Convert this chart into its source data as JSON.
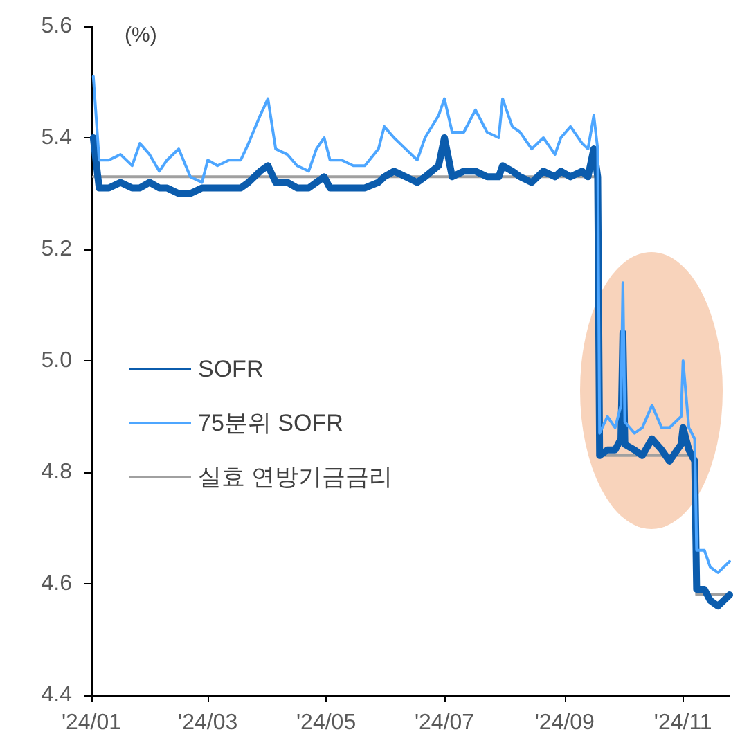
{
  "chart_data": {
    "type": "line",
    "ylabel": "(%)",
    "x": [
      "2024-01-02",
      "2024-01-05",
      "2024-01-10",
      "2024-01-16",
      "2024-01-22",
      "2024-01-26",
      "2024-01-31",
      "2024-02-05",
      "2024-02-09",
      "2024-02-15",
      "2024-02-21",
      "2024-02-27",
      "2024-03-01",
      "2024-03-06",
      "2024-03-12",
      "2024-03-18",
      "2024-03-22",
      "2024-03-28",
      "2024-04-01",
      "2024-04-05",
      "2024-04-11",
      "2024-04-16",
      "2024-04-22",
      "2024-04-26",
      "2024-04-30",
      "2024-05-03",
      "2024-05-09",
      "2024-05-15",
      "2024-05-21",
      "2024-05-28",
      "2024-05-31",
      "2024-06-05",
      "2024-06-11",
      "2024-06-17",
      "2024-06-21",
      "2024-06-28",
      "2024-07-01",
      "2024-07-05",
      "2024-07-11",
      "2024-07-17",
      "2024-07-23",
      "2024-07-29",
      "2024-07-31",
      "2024-08-05",
      "2024-08-09",
      "2024-08-15",
      "2024-08-21",
      "2024-08-27",
      "2024-08-30",
      "2024-09-04",
      "2024-09-10",
      "2024-09-13",
      "2024-09-16",
      "2024-09-18",
      "2024-09-19",
      "2024-09-23",
      "2024-09-27",
      "2024-09-30",
      "2024-10-01",
      "2024-10-02",
      "2024-10-07",
      "2024-10-11",
      "2024-10-16",
      "2024-10-21",
      "2024-10-25",
      "2024-10-31",
      "2024-11-01",
      "2024-11-04",
      "2024-11-07",
      "2024-11-08",
      "2024-11-12",
      "2024-11-15",
      "2024-11-19",
      "2024-11-22",
      "2024-11-25"
    ],
    "series": [
      {
        "name": "SOFR",
        "color": "#0b5cad",
        "values": [
          5.4,
          5.31,
          5.31,
          5.32,
          5.31,
          5.31,
          5.32,
          5.31,
          5.31,
          5.3,
          5.3,
          5.31,
          5.31,
          5.31,
          5.31,
          5.31,
          5.32,
          5.34,
          5.35,
          5.32,
          5.32,
          5.31,
          5.31,
          5.32,
          5.33,
          5.31,
          5.31,
          5.31,
          5.31,
          5.32,
          5.33,
          5.34,
          5.33,
          5.32,
          5.33,
          5.35,
          5.4,
          5.33,
          5.34,
          5.34,
          5.33,
          5.33,
          5.35,
          5.34,
          5.33,
          5.32,
          5.34,
          5.33,
          5.34,
          5.33,
          5.34,
          5.33,
          5.38,
          5.33,
          4.83,
          4.84,
          4.84,
          4.86,
          5.05,
          4.85,
          4.84,
          4.83,
          4.86,
          4.84,
          4.82,
          4.85,
          4.88,
          4.84,
          4.82,
          4.59,
          4.59,
          4.57,
          4.56,
          4.57,
          4.58
        ]
      },
      {
        "name": "75분위 SOFR",
        "color": "#4da6ff",
        "values": [
          5.51,
          5.36,
          5.36,
          5.37,
          5.35,
          5.39,
          5.37,
          5.34,
          5.36,
          5.38,
          5.33,
          5.32,
          5.36,
          5.35,
          5.36,
          5.36,
          5.39,
          5.44,
          5.47,
          5.38,
          5.37,
          5.35,
          5.34,
          5.38,
          5.4,
          5.36,
          5.36,
          5.35,
          5.35,
          5.38,
          5.42,
          5.4,
          5.38,
          5.36,
          5.4,
          5.44,
          5.47,
          5.41,
          5.41,
          5.45,
          5.41,
          5.4,
          5.47,
          5.42,
          5.41,
          5.38,
          5.4,
          5.37,
          5.4,
          5.42,
          5.39,
          5.38,
          5.44,
          5.38,
          4.87,
          4.9,
          4.88,
          4.92,
          5.14,
          4.89,
          4.87,
          4.88,
          4.92,
          4.88,
          4.88,
          4.9,
          5.0,
          4.88,
          4.86,
          4.66,
          4.66,
          4.63,
          4.62,
          4.63,
          4.64
        ]
      },
      {
        "name": "실효 연방기금금리",
        "color": "#a0a0a0",
        "x": [
          "2024-01-02",
          "2024-09-18",
          "2024-09-19",
          "2024-11-07",
          "2024-11-08",
          "2024-11-25"
        ],
        "values": [
          5.33,
          5.33,
          4.83,
          4.83,
          4.58,
          4.58
        ]
      }
    ],
    "xlim": [
      "2024-01-01",
      "2024-11-25"
    ],
    "xticks": [
      {
        "value": "2024-01-01",
        "label": "'24/01"
      },
      {
        "value": "2024-03-01",
        "label": "'24/03"
      },
      {
        "value": "2024-05-01",
        "label": "'24/05"
      },
      {
        "value": "2024-07-01",
        "label": "'24/07"
      },
      {
        "value": "2024-09-01",
        "label": "'24/09"
      },
      {
        "value": "2024-11-01",
        "label": "'24/11"
      }
    ],
    "ylim": [
      4.4,
      5.6
    ],
    "yticks": [
      4.4,
      4.6,
      4.8,
      {
        "value": 5,
        "label": "5.0"
      },
      5.2,
      5.4,
      5.6
    ],
    "grid": false,
    "legend": "center left",
    "marker": "none",
    "line_style": "solid"
  }
}
